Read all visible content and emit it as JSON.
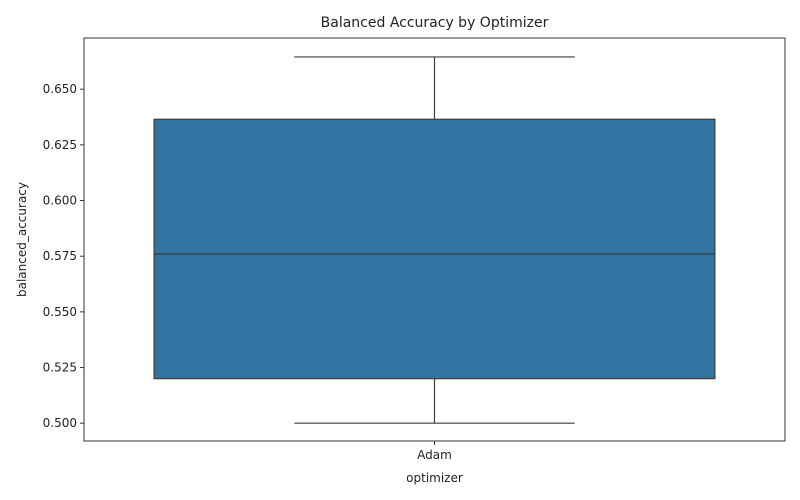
{
  "chart_data": {
    "type": "box",
    "title": "Balanced Accuracy by Optimizer",
    "xlabel": "optimizer",
    "ylabel": "balanced_accuracy",
    "categories": [
      "Adam"
    ],
    "boxes": [
      {
        "category": "Adam",
        "min": 0.5,
        "q1": 0.52,
        "median": 0.576,
        "q3": 0.6365,
        "max": 0.6645
      }
    ],
    "ylim": [
      0.492,
      0.673
    ],
    "yticks": [
      0.5,
      0.525,
      0.55,
      0.575,
      0.6,
      0.625,
      0.65
    ],
    "ytick_labels": [
      "0.500",
      "0.525",
      "0.550",
      "0.575",
      "0.600",
      "0.625",
      "0.650"
    ],
    "grid": false,
    "colors": {
      "box": "#3274a1",
      "line": "#3d3d3d"
    }
  }
}
